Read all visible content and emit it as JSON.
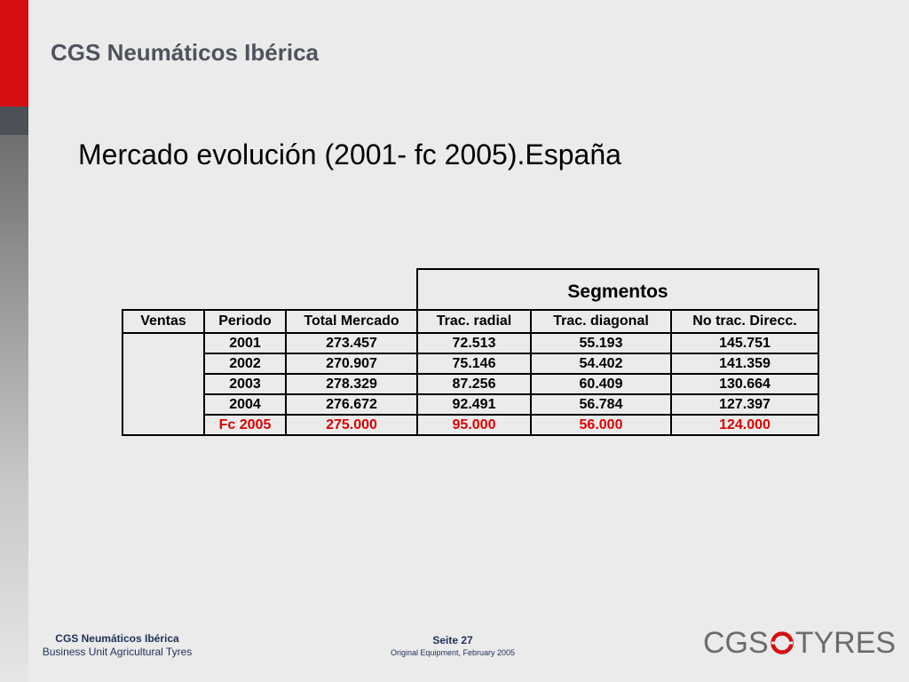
{
  "header": {
    "brand": "CGS Neumáticos Ibérica"
  },
  "slide": {
    "title": "Mercado evolución (2001- fc 2005).España"
  },
  "table": {
    "group_header": "Segmentos",
    "columns": [
      "Ventas",
      "Periodo",
      "Total Mercado",
      "Trac. radial",
      "Trac. diagonal",
      "No trac. Direcc."
    ],
    "rows": [
      {
        "periodo": "2001",
        "total": "273.457",
        "radial": "72.513",
        "diagonal": "55.193",
        "notrac": "145.751"
      },
      {
        "periodo": "2002",
        "total": "270.907",
        "radial": "75.146",
        "diagonal": "54.402",
        "notrac": "141.359"
      },
      {
        "periodo": "2003",
        "total": "278.329",
        "radial": "87.256",
        "diagonal": "60.409",
        "notrac": "130.664"
      },
      {
        "periodo": "2004",
        "total": "276.672",
        "radial": "92.491",
        "diagonal": "56.784",
        "notrac": "127.397"
      },
      {
        "periodo": "Fc 2005",
        "total": "275.000",
        "radial": "95.000",
        "diagonal": "56.000",
        "notrac": "124.000"
      }
    ],
    "forecast_color": "#e00000"
  },
  "footer": {
    "company": "CGS Neumáticos Ibérica",
    "unit": "Business Unit Agricultural Tyres",
    "page": "Seite 27",
    "subtitle": "Original Equipment, February 2005"
  },
  "logo": {
    "left": "CGS",
    "right": "TYRES",
    "icon": "tyre-ring-icon",
    "accent": "#d50f14"
  },
  "colors": {
    "leftbar_red": "#d50f14",
    "leftbar_dark": "#4d5157",
    "title": "#4f535c",
    "footer_text": "#1f2f5a"
  }
}
